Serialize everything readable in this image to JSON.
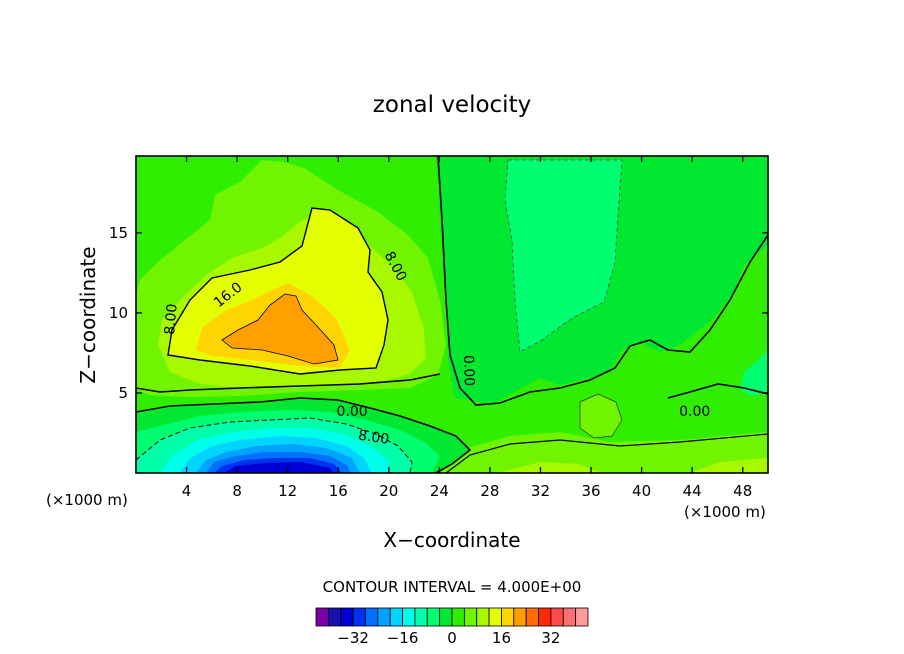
{
  "chart_data": {
    "type": "heatmap",
    "title": "zonal velocity",
    "xlabel": "X−coordinate",
    "ylabel": "Z−coordinate",
    "x_unit": "(×1000 m)",
    "z_unit": "(×1000 m)",
    "xlim": [
      0,
      50
    ],
    "ylim": [
      0,
      19.8
    ],
    "x_ticks": [
      4,
      8,
      12,
      16,
      20,
      24,
      28,
      32,
      36,
      40,
      44,
      48
    ],
    "y_ticks": [
      5,
      10,
      15
    ],
    "contour_interval_text": "CONTOUR INTERVAL = 4.000E+00",
    "contour_labels": [
      {
        "text": "8.00",
        "x": 2.8,
        "z": 9.6,
        "rot": -85
      },
      {
        "text": "16.0",
        "x": 7.3,
        "z": 11.1,
        "rot": -38
      },
      {
        "text": "8.00",
        "x": 20.5,
        "z": 12.9,
        "rot": 62
      },
      {
        "text": "0.00",
        "x": 26.3,
        "z": 6.4,
        "rot": 88
      },
      {
        "text": "0.00",
        "x": 17.1,
        "z": 3.8,
        "rot": 0
      },
      {
        "text": "8.00",
        "x": 18.8,
        "z": 2.2,
        "rot": 8
      },
      {
        "text": "0.00",
        "x": 44.2,
        "z": 3.8,
        "rot": 0
      }
    ],
    "colorbar": {
      "levels": [
        -40,
        -36,
        -32,
        -28,
        -24,
        -20,
        -16,
        -12,
        -8,
        -4,
        0,
        4,
        8,
        12,
        16,
        20,
        24,
        28,
        32,
        36
      ],
      "colors": [
        "#7b00a8",
        "#1a0fa8",
        "#0000d4",
        "#0030f0",
        "#0070ff",
        "#00a4ff",
        "#00d4ff",
        "#00ffea",
        "#00ffaa",
        "#00ff70",
        "#00e830",
        "#30ee00",
        "#70f400",
        "#a8f800",
        "#e4ff00",
        "#ffd400",
        "#ffa000",
        "#ff6c00",
        "#ff2a00",
        "#ff4a4a",
        "#ff7070",
        "#ff9a9a"
      ],
      "tick_labels": [
        "−32",
        "−16",
        "0",
        "16",
        "32"
      ],
      "tick_values": [
        -32,
        -16,
        0,
        16,
        32
      ]
    }
  }
}
